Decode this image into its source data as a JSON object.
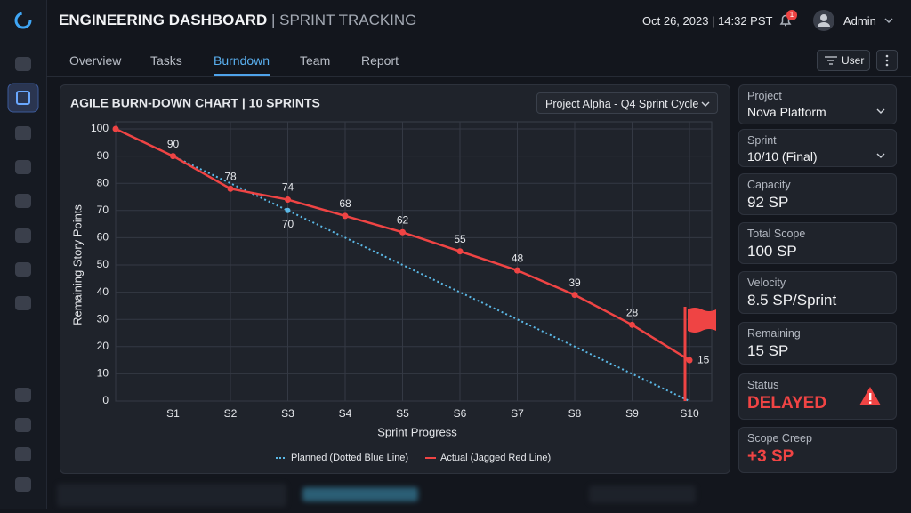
{
  "header": {
    "title": "ENGINEERING DASHBOARD",
    "subtitle": "| SPRINT TRACKING",
    "datetime": "Oct 26, 2023 | 14:32 PST",
    "notifications": 1,
    "user": "Admin"
  },
  "tabs": [
    "Overview",
    "Tasks",
    "Burndown",
    "Team",
    "Report"
  ],
  "active_tab": 2,
  "toolbar": {
    "filter": "User"
  },
  "panel": {
    "dropdown": "Project Alpha - Q4 Sprint Cycle"
  },
  "chart_data": {
    "type": "line",
    "title": "AGILE BURN-DOWN CHART | 10 SPRINTS",
    "xlabel": "Sprint Progress",
    "ylabel": "Remaining Story Points",
    "categories": [
      null,
      "S1",
      "S2",
      "S3",
      "S4",
      "S5",
      "S6",
      "S7",
      "S8",
      "S9",
      "S10"
    ],
    "series": [
      {
        "name": "Planned (Dotted Blue Line)",
        "color": "#5bb8e6",
        "style": "dotted",
        "values": [
          100,
          90,
          80,
          70,
          60,
          50,
          40,
          30,
          20,
          10,
          0
        ],
        "value_labels": [
          null,
          null,
          null,
          "70",
          null,
          null,
          null,
          null,
          null,
          null,
          null
        ]
      },
      {
        "name": "Actual (Jagged Red Line)",
        "color": "#ef4444",
        "style": "solid",
        "values": [
          100,
          90,
          78,
          74,
          68,
          62,
          55,
          48,
          39,
          28,
          15
        ],
        "value_labels": [
          null,
          "90",
          "78",
          "74",
          "68",
          "62",
          "55",
          "48",
          "39",
          "28",
          "15"
        ]
      }
    ],
    "ylim": [
      0,
      100
    ],
    "yticks": [
      0,
      10,
      20,
      30,
      40,
      50,
      60,
      70,
      80,
      90,
      100
    ],
    "grid": true,
    "legend": "bottom"
  },
  "cards": [
    {
      "label": "Project",
      "value": "Nova Platform",
      "dropdown": true
    },
    {
      "label": "Sprint",
      "value": "10/10 (Final)",
      "dropdown": true
    },
    {
      "label": "Capacity",
      "value": "92 SP"
    },
    {
      "label": "Total Scope",
      "value": "100 SP"
    },
    {
      "label": "Velocity",
      "value": "8.5 SP/Sprint"
    },
    {
      "label": "Remaining",
      "value": "15 SP"
    },
    {
      "label": "Status",
      "value": "DELAYED",
      "color": "#f04444",
      "warning": true
    },
    {
      "label": "Scope Creep",
      "value": "+3 SP",
      "color": "#f04444"
    }
  ]
}
